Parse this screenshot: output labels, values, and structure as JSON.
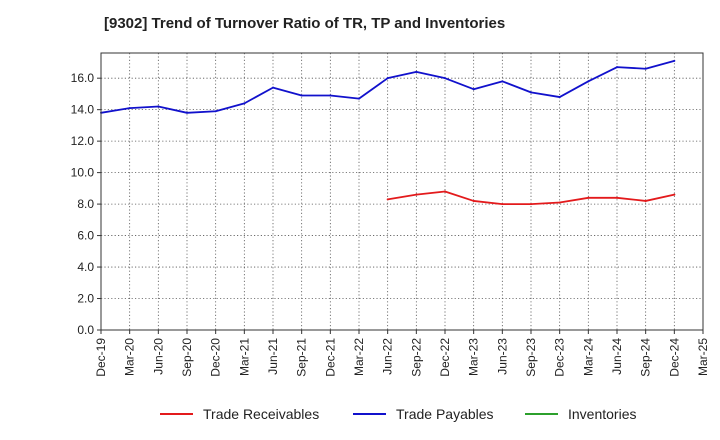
{
  "chart_data": {
    "type": "line",
    "title": "[9302]  Trend of Turnover Ratio of TR, TP and Inventories",
    "xlabel": "",
    "ylabel": "",
    "ylim": [
      0,
      17.6
    ],
    "y_ticks": [
      "0.0",
      "2.0",
      "4.0",
      "6.0",
      "8.0",
      "10.0",
      "12.0",
      "14.0",
      "16.0"
    ],
    "grid": true,
    "legend_position": "bottom",
    "categories": [
      "Dec-19",
      "Mar-20",
      "Jun-20",
      "Sep-20",
      "Dec-20",
      "Mar-21",
      "Jun-21",
      "Sep-21",
      "Dec-21",
      "Mar-22",
      "Jun-22",
      "Sep-22",
      "Dec-22",
      "Mar-23",
      "Jun-23",
      "Sep-23",
      "Dec-23",
      "Mar-24",
      "Jun-24",
      "Sep-24",
      "Dec-24",
      "Mar-25"
    ],
    "series": [
      {
        "name": "Trade Receivables",
        "color": "#e31a1c",
        "values": [
          null,
          null,
          null,
          null,
          null,
          null,
          null,
          null,
          null,
          null,
          8.3,
          8.6,
          8.8,
          8.2,
          8.0,
          8.0,
          8.1,
          8.4,
          8.4,
          8.2,
          8.6,
          null
        ]
      },
      {
        "name": "Trade Payables",
        "color": "#1111cc",
        "values": [
          13.8,
          14.1,
          14.2,
          13.8,
          13.9,
          14.4,
          15.4,
          14.9,
          14.9,
          14.7,
          16.0,
          16.4,
          16.0,
          15.3,
          15.8,
          15.1,
          14.8,
          15.8,
          16.7,
          16.6,
          17.1,
          null
        ]
      },
      {
        "name": "Inventories",
        "color": "#2ca02c",
        "values": [
          null,
          null,
          null,
          null,
          null,
          null,
          null,
          null,
          null,
          null,
          null,
          null,
          null,
          null,
          null,
          null,
          null,
          null,
          null,
          null,
          null,
          null
        ]
      }
    ]
  }
}
